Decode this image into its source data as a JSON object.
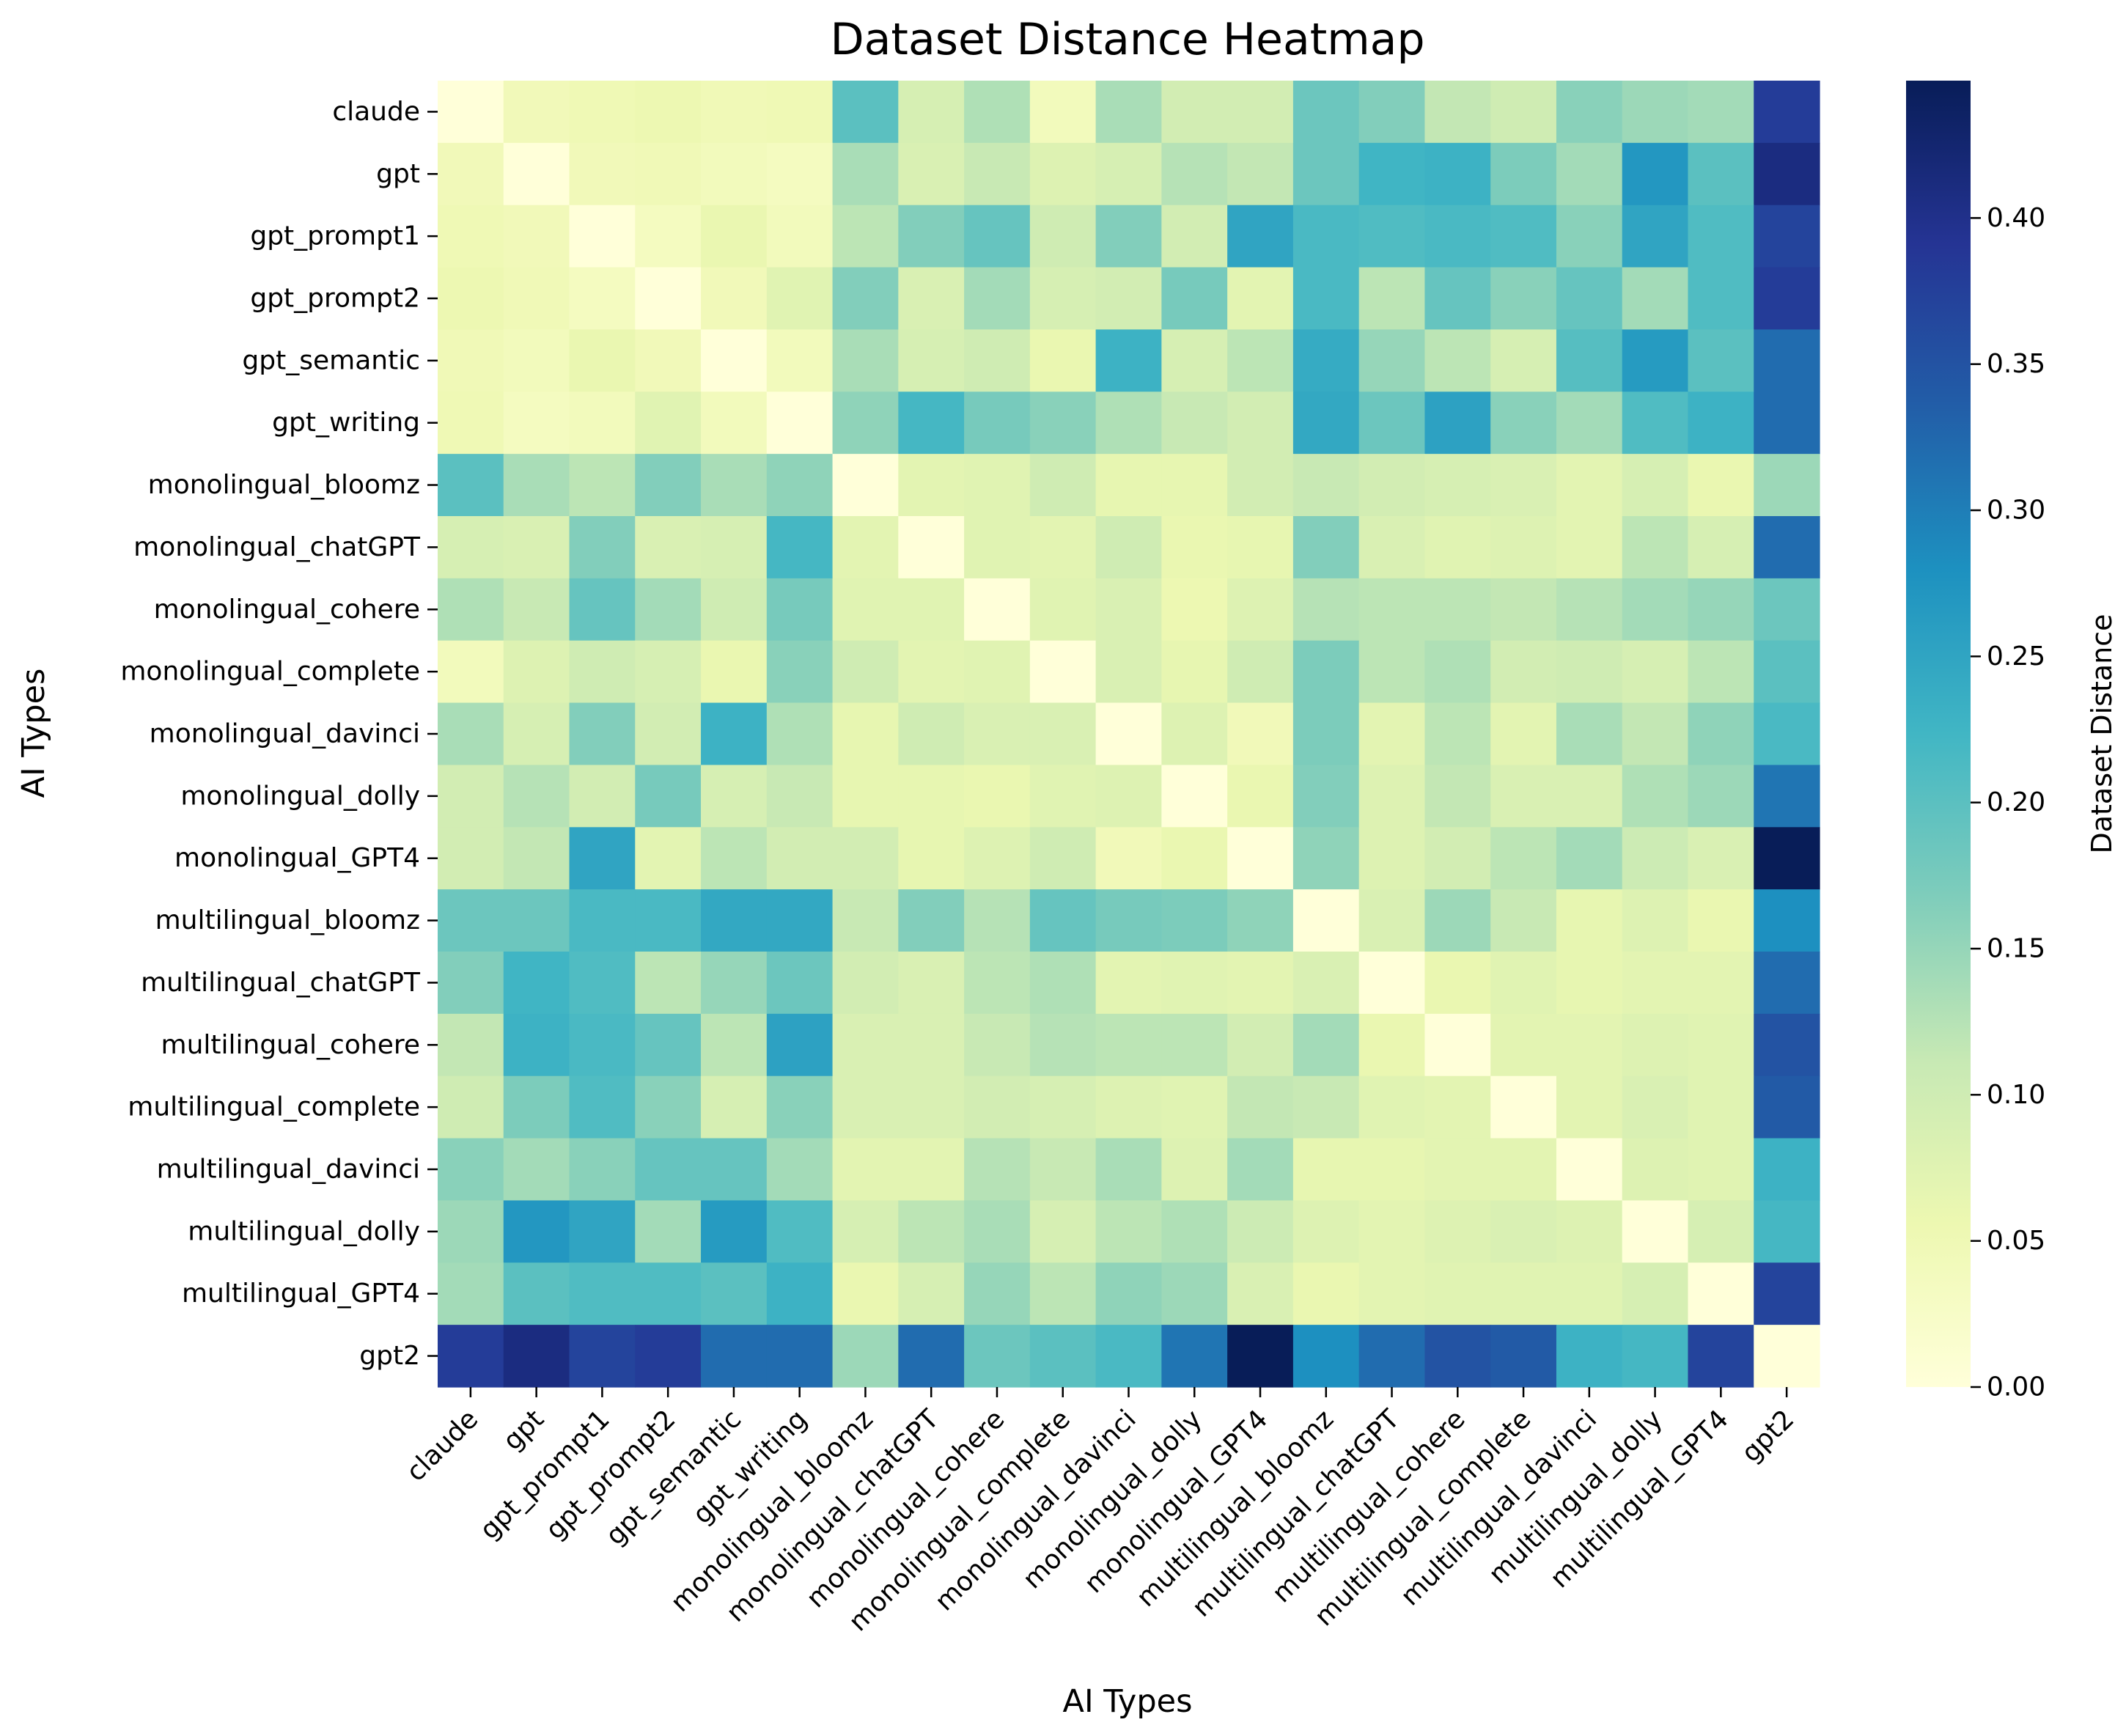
{
  "chart_data": {
    "type": "heatmap",
    "title": "Dataset Distance Heatmap",
    "xlabel": "AI Types",
    "ylabel": "AI Types",
    "colorbar": {
      "label": "Dataset Distance",
      "range": [
        0,
        0.447
      ],
      "ticks": [
        "0.00",
        "0.05",
        "0.10",
        "0.15",
        "0.20",
        "0.25",
        "0.30",
        "0.35",
        "0.40"
      ],
      "colormap": "YlGnBu"
    },
    "labels": [
      "claude",
      "gpt",
      "gpt_prompt1",
      "gpt_prompt2",
      "gpt_semantic",
      "gpt_writing",
      "monolingual_bloomz",
      "monolingual_chatGPT",
      "monolingual_cohere",
      "monolingual_complete",
      "monolingual_davinci",
      "monolingual_dolly",
      "monolingual_GPT4",
      "multilingual_bloomz",
      "multilingual_chatGPT",
      "multilingual_cohere",
      "multilingual_complete",
      "multilingual_davinci",
      "multilingual_dolly",
      "multilingual_GPT4",
      "gpt2"
    ],
    "matrix": [
      [
        0.0,
        0.045,
        0.05,
        0.055,
        0.048,
        0.05,
        0.2,
        0.09,
        0.13,
        0.04,
        0.135,
        0.095,
        0.095,
        0.185,
        0.165,
        0.115,
        0.1,
        0.16,
        0.145,
        0.14,
        0.38
      ],
      [
        0.045,
        0.0,
        0.045,
        0.048,
        0.04,
        0.035,
        0.135,
        0.085,
        0.11,
        0.08,
        0.09,
        0.125,
        0.115,
        0.185,
        0.225,
        0.23,
        0.17,
        0.14,
        0.27,
        0.2,
        0.41
      ],
      [
        0.05,
        0.045,
        0.0,
        0.035,
        0.06,
        0.04,
        0.12,
        0.165,
        0.19,
        0.1,
        0.165,
        0.095,
        0.25,
        0.215,
        0.21,
        0.215,
        0.21,
        0.16,
        0.25,
        0.21,
        0.37
      ],
      [
        0.055,
        0.048,
        0.035,
        0.0,
        0.045,
        0.075,
        0.165,
        0.085,
        0.14,
        0.09,
        0.095,
        0.175,
        0.07,
        0.215,
        0.12,
        0.19,
        0.16,
        0.19,
        0.14,
        0.21,
        0.38
      ],
      [
        0.048,
        0.04,
        0.06,
        0.045,
        0.0,
        0.04,
        0.135,
        0.09,
        0.1,
        0.06,
        0.23,
        0.09,
        0.12,
        0.24,
        0.15,
        0.12,
        0.09,
        0.205,
        0.265,
        0.2,
        0.32
      ],
      [
        0.05,
        0.035,
        0.04,
        0.075,
        0.04,
        0.0,
        0.155,
        0.22,
        0.175,
        0.16,
        0.13,
        0.11,
        0.095,
        0.245,
        0.185,
        0.255,
        0.16,
        0.14,
        0.21,
        0.23,
        0.32
      ],
      [
        0.2,
        0.135,
        0.12,
        0.165,
        0.135,
        0.155,
        0.0,
        0.07,
        0.075,
        0.1,
        0.065,
        0.065,
        0.095,
        0.11,
        0.095,
        0.09,
        0.085,
        0.07,
        0.09,
        0.06,
        0.145
      ],
      [
        0.09,
        0.085,
        0.165,
        0.085,
        0.09,
        0.22,
        0.07,
        0.0,
        0.075,
        0.07,
        0.1,
        0.06,
        0.065,
        0.165,
        0.085,
        0.075,
        0.08,
        0.07,
        0.12,
        0.09,
        0.32
      ],
      [
        0.13,
        0.11,
        0.19,
        0.14,
        0.1,
        0.175,
        0.075,
        0.075,
        0.0,
        0.075,
        0.085,
        0.055,
        0.08,
        0.125,
        0.12,
        0.12,
        0.115,
        0.125,
        0.14,
        0.15,
        0.185
      ],
      [
        0.04,
        0.08,
        0.1,
        0.09,
        0.06,
        0.16,
        0.1,
        0.07,
        0.075,
        0.0,
        0.085,
        0.065,
        0.1,
        0.17,
        0.12,
        0.13,
        0.095,
        0.1,
        0.09,
        0.12,
        0.2
      ],
      [
        0.135,
        0.09,
        0.165,
        0.095,
        0.23,
        0.13,
        0.065,
        0.1,
        0.085,
        0.085,
        0.0,
        0.08,
        0.045,
        0.17,
        0.07,
        0.12,
        0.07,
        0.135,
        0.115,
        0.155,
        0.215
      ],
      [
        0.095,
        0.125,
        0.095,
        0.175,
        0.09,
        0.11,
        0.065,
        0.065,
        0.06,
        0.075,
        0.08,
        0.0,
        0.06,
        0.165,
        0.08,
        0.115,
        0.085,
        0.085,
        0.13,
        0.145,
        0.31
      ],
      [
        0.095,
        0.115,
        0.25,
        0.07,
        0.12,
        0.095,
        0.095,
        0.065,
        0.08,
        0.1,
        0.045,
        0.06,
        0.0,
        0.155,
        0.08,
        0.095,
        0.12,
        0.14,
        0.105,
        0.085,
        0.447
      ],
      [
        0.185,
        0.185,
        0.215,
        0.215,
        0.245,
        0.245,
        0.11,
        0.165,
        0.125,
        0.19,
        0.175,
        0.17,
        0.155,
        0.0,
        0.085,
        0.145,
        0.11,
        0.065,
        0.08,
        0.06,
        0.28
      ],
      [
        0.165,
        0.225,
        0.21,
        0.12,
        0.15,
        0.185,
        0.095,
        0.085,
        0.12,
        0.13,
        0.07,
        0.075,
        0.07,
        0.085,
        0.0,
        0.06,
        0.075,
        0.065,
        0.07,
        0.07,
        0.32
      ],
      [
        0.115,
        0.23,
        0.215,
        0.19,
        0.12,
        0.255,
        0.085,
        0.085,
        0.11,
        0.125,
        0.12,
        0.12,
        0.095,
        0.14,
        0.06,
        0.0,
        0.07,
        0.07,
        0.08,
        0.075,
        0.35
      ],
      [
        0.1,
        0.17,
        0.21,
        0.16,
        0.09,
        0.16,
        0.085,
        0.085,
        0.095,
        0.09,
        0.08,
        0.075,
        0.115,
        0.11,
        0.075,
        0.07,
        0.0,
        0.07,
        0.085,
        0.075,
        0.34
      ],
      [
        0.16,
        0.14,
        0.16,
        0.19,
        0.19,
        0.14,
        0.07,
        0.07,
        0.125,
        0.11,
        0.135,
        0.08,
        0.14,
        0.065,
        0.065,
        0.07,
        0.07,
        0.0,
        0.08,
        0.075,
        0.23
      ],
      [
        0.145,
        0.27,
        0.25,
        0.14,
        0.265,
        0.21,
        0.09,
        0.12,
        0.135,
        0.09,
        0.12,
        0.13,
        0.105,
        0.08,
        0.07,
        0.08,
        0.085,
        0.08,
        0.0,
        0.09,
        0.22
      ],
      [
        0.14,
        0.2,
        0.21,
        0.21,
        0.2,
        0.23,
        0.06,
        0.09,
        0.15,
        0.12,
        0.155,
        0.145,
        0.085,
        0.06,
        0.07,
        0.075,
        0.075,
        0.075,
        0.09,
        0.0,
        0.37
      ],
      [
        0.38,
        0.41,
        0.37,
        0.38,
        0.32,
        0.32,
        0.145,
        0.32,
        0.185,
        0.2,
        0.215,
        0.31,
        0.447,
        0.28,
        0.32,
        0.35,
        0.34,
        0.23,
        0.22,
        0.37,
        0.0
      ]
    ]
  }
}
